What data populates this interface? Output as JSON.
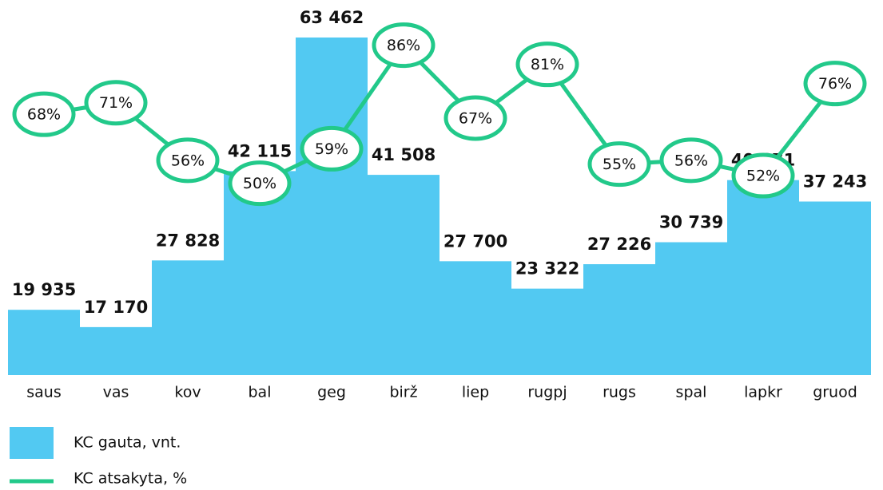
{
  "chart_data": {
    "type": "bar",
    "categories": [
      "saus",
      "vas",
      "kov",
      "bal",
      "geg",
      "birž",
      "liep",
      "rugpj",
      "rugs",
      "spal",
      "lapkr",
      "gruod"
    ],
    "ylim": [
      9500,
      63462
    ],
    "y2lim": [
      0,
      88
    ],
    "series": [
      {
        "name": "KC gauta, vnt.",
        "type": "bar",
        "color": "#52c9f2",
        "values": [
          19935,
          17170,
          27828,
          42115,
          63462,
          41508,
          27700,
          23322,
          27226,
          30739,
          40671,
          37243
        ],
        "value_labels": [
          "19 935",
          "17 170",
          "27 828",
          "42 115",
          "63 462",
          "41 508",
          "27 700",
          "23 322",
          "27 226",
          "30 739",
          "40 671",
          "37 243"
        ]
      },
      {
        "name": "KC atsakyta, %",
        "type": "line",
        "axis": "y2",
        "color": "#22c98a",
        "values": [
          68,
          71,
          56,
          50,
          59,
          86,
          67,
          81,
          55,
          56,
          52,
          76
        ],
        "value_labels": [
          "68%",
          "71%",
          "56%",
          "50%",
          "59%",
          "86%",
          "67%",
          "81%",
          "55%",
          "56%",
          "52%",
          "76%"
        ]
      }
    ]
  }
}
